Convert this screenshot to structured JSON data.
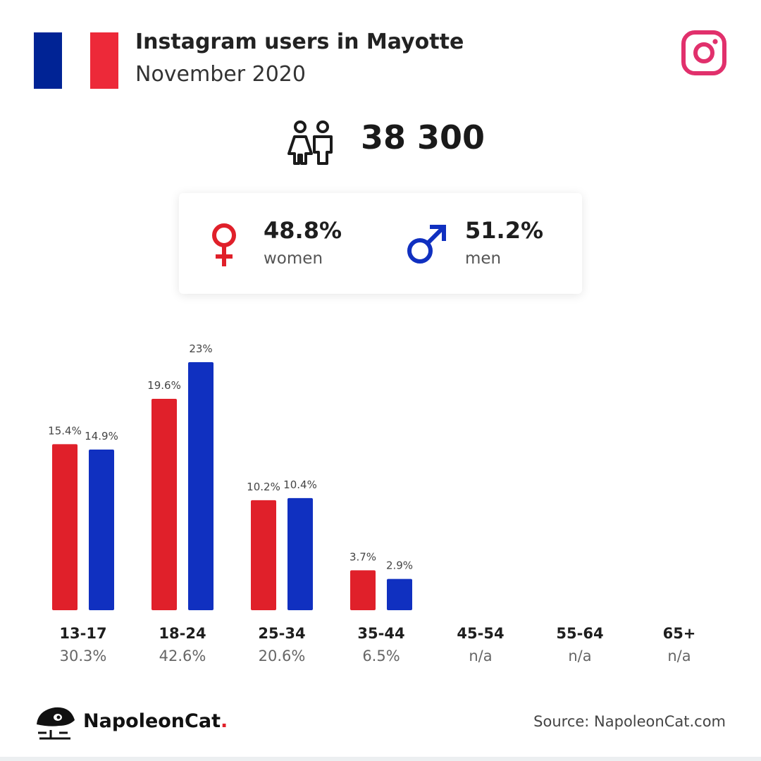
{
  "header": {
    "title": "Instagram users in Mayotte",
    "subtitle": "November 2020",
    "flag_colors": [
      "#002395",
      "#ffffff",
      "#ed2939"
    ],
    "platform_icon": "instagram-icon"
  },
  "summary": {
    "total": "38 300",
    "icon": "users-icon"
  },
  "gender": {
    "women": {
      "pct": "48.8%",
      "label": "women",
      "icon": "female-icon",
      "color": "#e0202a"
    },
    "men": {
      "pct": "51.2%",
      "label": "men",
      "icon": "male-icon",
      "color": "#1030c0"
    }
  },
  "chart_data": {
    "type": "bar",
    "categories": [
      "13-17",
      "18-24",
      "25-34",
      "35-44",
      "45-54",
      "55-64",
      "65+"
    ],
    "category_totals": [
      "30.3%",
      "42.6%",
      "20.6%",
      "6.5%",
      "n/a",
      "n/a",
      "n/a"
    ],
    "series": [
      {
        "values": [
          15.4,
          19.6,
          10.2,
          3.7,
          null,
          null,
          null
        ],
        "labels": [
          "15.4%",
          "19.6%",
          "10.2%",
          "3.7%",
          "",
          "",
          ""
        ],
        "color": "#e0202a"
      },
      {
        "values": [
          14.9,
          23,
          10.4,
          2.9,
          null,
          null,
          null
        ],
        "labels": [
          "14.9%",
          "23%",
          "10.4%",
          "2.9%",
          "",
          "",
          ""
        ],
        "color": "#1030c0"
      }
    ],
    "ylim": [
      0,
      25
    ],
    "grid": false
  },
  "footer": {
    "brand_name": "NapoleonCat",
    "brand_dot": ".",
    "source": "Source: NapoleonCat.com"
  }
}
